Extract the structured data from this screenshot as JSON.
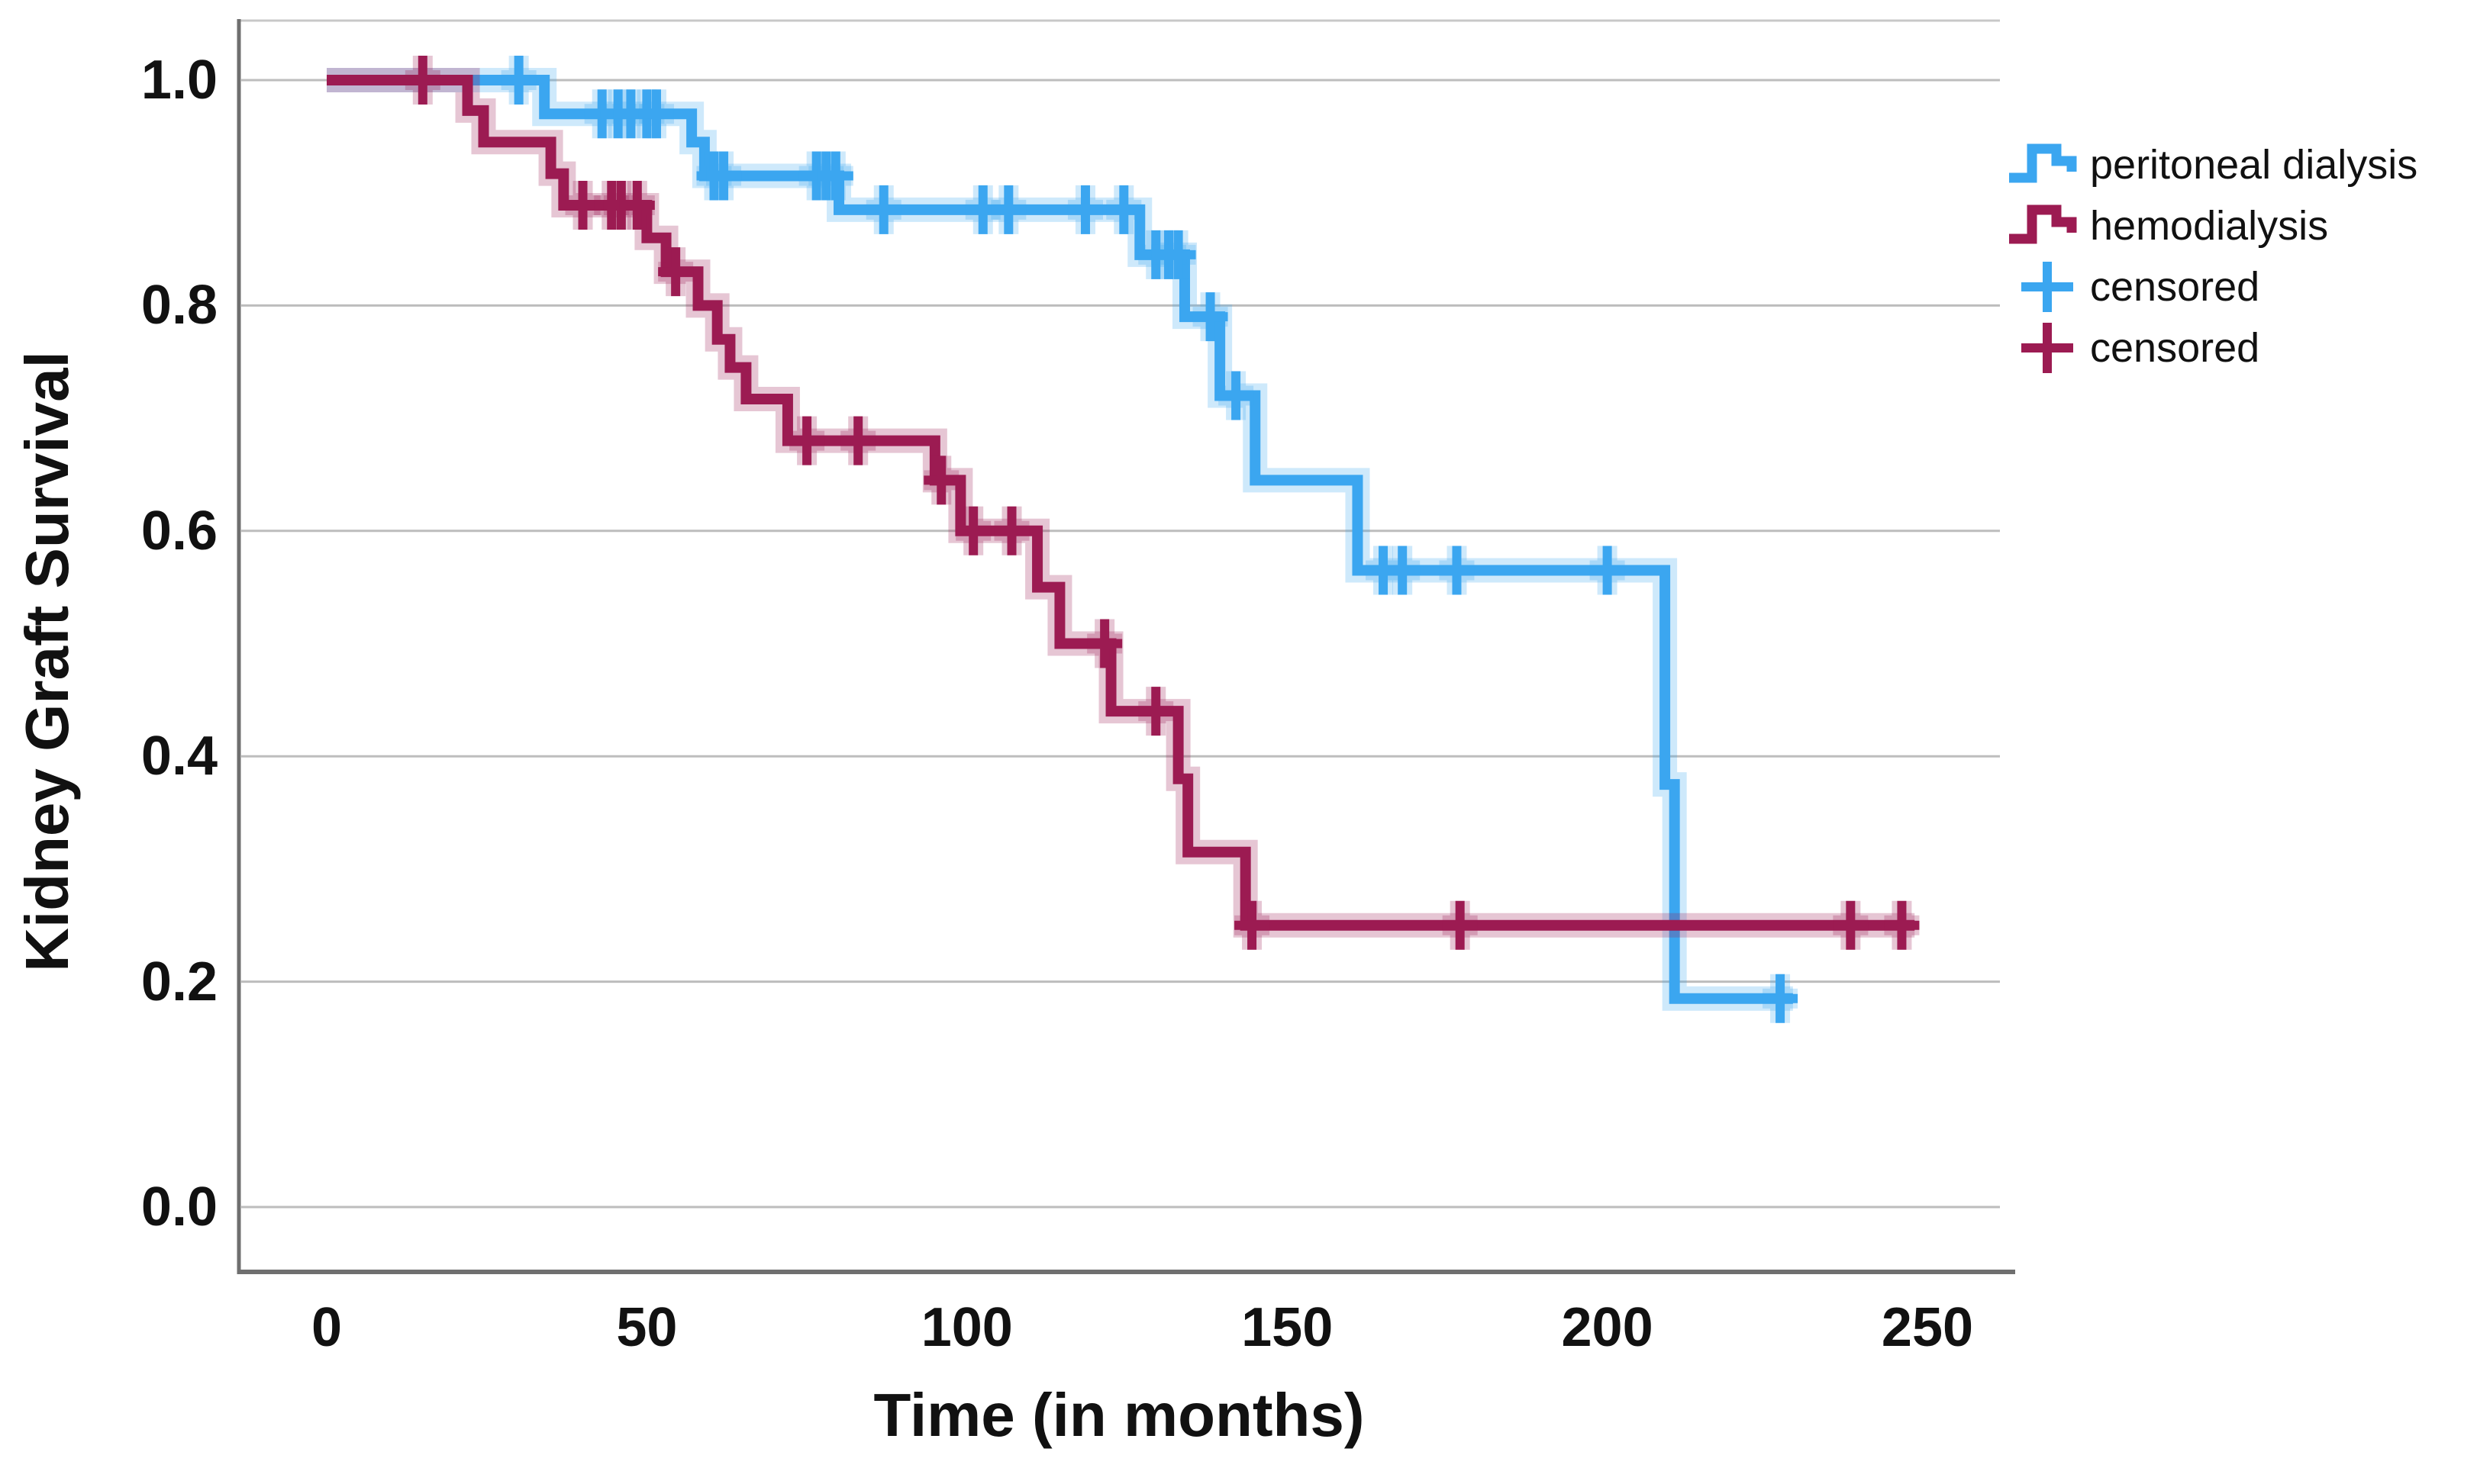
{
  "chart_data": {
    "type": "line",
    "subtype": "kaplan-meier-step",
    "title": "",
    "xlabel": "Time (in months)",
    "ylabel": "Kidney Graft Survival",
    "xticks": [
      0,
      50,
      100,
      150,
      200,
      250
    ],
    "xtick_labels": [
      "0",
      "50",
      "100",
      "150",
      "200",
      "250"
    ],
    "yticks": [
      1.0,
      0.8,
      0.6,
      0.4,
      0.2,
      0.0
    ],
    "ytick_labels": [
      "1.0",
      "0.8",
      "0.6",
      "0.4",
      "0.2",
      "0.0"
    ],
    "xlim": [
      0,
      265
    ],
    "ylim": [
      0.0,
      1.0
    ],
    "grid": "horizontal",
    "gridline_color": "#bdbdbd",
    "axis_line_color": "#6f6f6f",
    "legend_position": "right-top",
    "series": [
      {
        "name": "peritoneal dialysis",
        "color": "#3BA6F0",
        "start": [
          0,
          1.0
        ],
        "steps": [
          [
            34,
            0.97
          ],
          [
            57,
            0.945
          ],
          [
            59,
            0.915
          ],
          [
            80,
            0.885
          ],
          [
            127,
            0.845
          ],
          [
            134,
            0.79
          ],
          [
            139.5,
            0.72
          ],
          [
            145,
            0.645
          ],
          [
            161,
            0.565
          ],
          [
            209,
            0.375
          ],
          [
            210.5,
            0.185
          ]
        ],
        "end_t": 229,
        "censored": [
          [
            30,
            1.0
          ],
          [
            43,
            0.97
          ],
          [
            45.5,
            0.97
          ],
          [
            47.5,
            0.97
          ],
          [
            50,
            0.97
          ],
          [
            51.5,
            0.97
          ],
          [
            60.5,
            0.915
          ],
          [
            62,
            0.915
          ],
          [
            76.5,
            0.915
          ],
          [
            78,
            0.915
          ],
          [
            79.5,
            0.915
          ],
          [
            87,
            0.885
          ],
          [
            102.5,
            0.885
          ],
          [
            106.5,
            0.885
          ],
          [
            118.5,
            0.885
          ],
          [
            124.5,
            0.885
          ],
          [
            129.5,
            0.845
          ],
          [
            131.5,
            0.845
          ],
          [
            133,
            0.845
          ],
          [
            138,
            0.79
          ],
          [
            142,
            0.72
          ],
          [
            165,
            0.565
          ],
          [
            168,
            0.565
          ],
          [
            176.5,
            0.565
          ],
          [
            200,
            0.565
          ],
          [
            227,
            0.185
          ]
        ]
      },
      {
        "name": "hemodialysis",
        "color": "#9C1B52",
        "start": [
          0,
          1.0
        ],
        "steps": [
          [
            22,
            0.973
          ],
          [
            24.5,
            0.945
          ],
          [
            35,
            0.917
          ],
          [
            37,
            0.889
          ],
          [
            50,
            0.86
          ],
          [
            53,
            0.83
          ],
          [
            58,
            0.8
          ],
          [
            61,
            0.77
          ],
          [
            63,
            0.745
          ],
          [
            65.5,
            0.717
          ],
          [
            72,
            0.68
          ],
          [
            95,
            0.645
          ],
          [
            99,
            0.6
          ],
          [
            111,
            0.55
          ],
          [
            114.5,
            0.5
          ],
          [
            122.5,
            0.44
          ],
          [
            133,
            0.38
          ],
          [
            134.5,
            0.315
          ],
          [
            143.5,
            0.25
          ]
        ],
        "end_t": 248,
        "censored": [
          [
            15,
            1.0
          ],
          [
            40,
            0.889
          ],
          [
            44.5,
            0.889
          ],
          [
            46,
            0.889
          ],
          [
            48.5,
            0.889
          ],
          [
            54.5,
            0.83
          ],
          [
            75,
            0.68
          ],
          [
            83,
            0.68
          ],
          [
            96,
            0.645
          ],
          [
            101,
            0.6
          ],
          [
            107,
            0.6
          ],
          [
            121.5,
            0.5
          ],
          [
            129.5,
            0.44
          ],
          [
            144.5,
            0.25
          ],
          [
            177,
            0.25
          ],
          [
            238,
            0.25
          ],
          [
            246,
            0.25
          ]
        ]
      }
    ]
  },
  "legend": {
    "items": [
      {
        "label": "peritoneal dialysis",
        "marker": "step",
        "color": "#3BA6F0"
      },
      {
        "label": "hemodialysis",
        "marker": "step",
        "color": "#9C1B52"
      },
      {
        "label": "censored",
        "marker": "plus",
        "color": "#3BA6F0"
      },
      {
        "label": "censored",
        "marker": "plus",
        "color": "#9C1B52"
      }
    ]
  }
}
